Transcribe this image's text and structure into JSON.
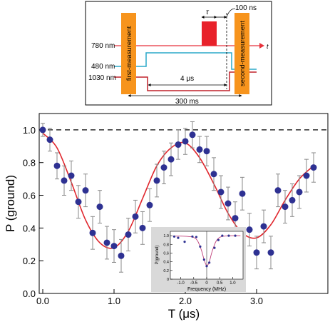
{
  "colors": {
    "laser780": "#e8323c",
    "laser480": "#2aa8c8",
    "laser1030": "#c0202a",
    "measure": "#f7941d",
    "pulse": "#e8212a",
    "point": "#2e3192",
    "fit": "#e0262d",
    "inset_bg": "#d9d9d9"
  },
  "sequence": {
    "label_780": "780 nm",
    "label_480": "480 nm",
    "label_1030": "1030 nm",
    "first_measurement": "first-measurement",
    "second_measurement": "second-measurement",
    "tau": "τ",
    "delay": "100 ns",
    "duration_short": "4 μs",
    "duration_long": "300 ms",
    "time_axis": "t"
  },
  "chart_data": [
    {
      "type": "scatter",
      "xlabel": "T (μs)",
      "ylabel": "P (ground)",
      "xlim": [
        -0.05,
        4.0
      ],
      "ylim": [
        0.0,
        1.1
      ],
      "xticks": [
        "0.0",
        "1.0",
        "2.0",
        "3.0"
      ],
      "xtick_values": [
        0,
        1,
        2,
        3
      ],
      "yticks": [
        "0.0",
        "0.2",
        "0.4",
        "0.6",
        "0.8",
        "1.0"
      ],
      "ytick_values": [
        0,
        0.2,
        0.4,
        0.6,
        0.8,
        1.0
      ],
      "reference_line": 1.0,
      "series": [
        {
          "points": [
            {
              "x": 0.0,
              "y": 1.0,
              "err": 0.04
            },
            {
              "x": 0.1,
              "y": 0.94,
              "err": 0.07
            },
            {
              "x": 0.2,
              "y": 0.78,
              "err": 0.08
            },
            {
              "x": 0.3,
              "y": 0.69,
              "err": 0.09
            },
            {
              "x": 0.4,
              "y": 0.72,
              "err": 0.09
            },
            {
              "x": 0.5,
              "y": 0.56,
              "err": 0.1
            },
            {
              "x": 0.6,
              "y": 0.63,
              "err": 0.1
            },
            {
              "x": 0.7,
              "y": 0.37,
              "err": 0.1
            },
            {
              "x": 0.8,
              "y": 0.53,
              "err": 0.1
            },
            {
              "x": 0.9,
              "y": 0.31,
              "err": 0.1
            },
            {
              "x": 1.0,
              "y": 0.29,
              "err": 0.1
            },
            {
              "x": 1.1,
              "y": 0.23,
              "err": 0.1
            },
            {
              "x": 1.2,
              "y": 0.36,
              "err": 0.1
            },
            {
              "x": 1.3,
              "y": 0.47,
              "err": 0.1
            },
            {
              "x": 1.4,
              "y": 0.4,
              "err": 0.1
            },
            {
              "x": 1.5,
              "y": 0.54,
              "err": 0.1
            },
            {
              "x": 1.6,
              "y": 0.69,
              "err": 0.1
            },
            {
              "x": 1.7,
              "y": 0.77,
              "err": 0.1
            },
            {
              "x": 1.8,
              "y": 0.82,
              "err": 0.1
            },
            {
              "x": 1.9,
              "y": 0.91,
              "err": 0.09
            },
            {
              "x": 2.0,
              "y": 0.93,
              "err": 0.08
            },
            {
              "x": 2.1,
              "y": 0.97,
              "err": 0.08
            },
            {
              "x": 2.2,
              "y": 0.88,
              "err": 0.08
            },
            {
              "x": 2.3,
              "y": 0.87,
              "err": 0.09
            },
            {
              "x": 2.4,
              "y": 0.73,
              "err": 0.1
            },
            {
              "x": 2.5,
              "y": 0.62,
              "err": 0.1
            },
            {
              "x": 2.6,
              "y": 0.55,
              "err": 0.1
            },
            {
              "x": 2.7,
              "y": 0.46,
              "err": 0.1
            },
            {
              "x": 2.8,
              "y": 0.61,
              "err": 0.1
            },
            {
              "x": 2.9,
              "y": 0.39,
              "err": 0.1
            },
            {
              "x": 3.0,
              "y": 0.25,
              "err": 0.1
            },
            {
              "x": 3.1,
              "y": 0.41,
              "err": 0.1
            },
            {
              "x": 3.2,
              "y": 0.25,
              "err": 0.1
            },
            {
              "x": 3.3,
              "y": 0.63,
              "err": 0.1
            },
            {
              "x": 3.4,
              "y": 0.53,
              "err": 0.1
            },
            {
              "x": 3.5,
              "y": 0.57,
              "err": 0.1
            },
            {
              "x": 3.6,
              "y": 0.62,
              "err": 0.1
            },
            {
              "x": 3.7,
              "y": 0.72,
              "err": 0.1
            },
            {
              "x": 3.8,
              "y": 0.77,
              "err": 0.09
            }
          ],
          "fit": {
            "x": [
              0.0,
              0.2,
              0.4,
              0.6,
              0.8,
              1.0,
              1.2,
              1.4,
              1.6,
              1.8,
              2.0,
              2.2,
              2.4,
              2.6,
              2.8,
              3.0,
              3.2,
              3.4,
              3.6,
              3.8
            ],
            "y": [
              0.98,
              0.89,
              0.68,
              0.45,
              0.31,
              0.28,
              0.38,
              0.58,
              0.78,
              0.89,
              0.92,
              0.83,
              0.67,
              0.49,
              0.37,
              0.34,
              0.42,
              0.57,
              0.7,
              0.78
            ]
          }
        }
      ]
    },
    {
      "type": "scatter",
      "xlabel": "Frequency (MHz)",
      "ylabel": "P(ground)",
      "xlim": [
        -1.4,
        1.4
      ],
      "ylim": [
        0.0,
        1.1
      ],
      "xticks": [
        "-1.0",
        "-0.5",
        "0",
        "0.5",
        "1.0"
      ],
      "xtick_values": [
        -1.0,
        -0.5,
        0.0,
        0.5,
        1.0
      ],
      "yticks": [
        "0",
        "0.2",
        "0.4",
        "0.6",
        "0.8",
        "1.0"
      ],
      "ytick_values": [
        0,
        0.2,
        0.4,
        0.6,
        0.8,
        1.0
      ],
      "series": [
        {
          "points": [
            {
              "x": -1.25,
              "y": 0.98
            },
            {
              "x": -1.1,
              "y": 0.95
            },
            {
              "x": -0.85,
              "y": 0.86
            },
            {
              "x": -0.55,
              "y": 0.98
            },
            {
              "x": -0.4,
              "y": 0.97
            },
            {
              "x": -0.25,
              "y": 0.75
            },
            {
              "x": -0.1,
              "y": 0.45
            },
            {
              "x": 0.0,
              "y": 0.3
            },
            {
              "x": 0.1,
              "y": 0.38
            },
            {
              "x": 0.3,
              "y": 0.72
            },
            {
              "x": 0.45,
              "y": 0.9
            },
            {
              "x": 0.6,
              "y": 1.0
            },
            {
              "x": 0.85,
              "y": 1.0
            },
            {
              "x": 1.1,
              "y": 1.0
            }
          ],
          "fit": {
            "x": [
              -1.3,
              -1.0,
              -0.7,
              -0.5,
              -0.35,
              -0.2,
              -0.1,
              0.0,
              0.1,
              0.2,
              0.35,
              0.5,
              0.7,
              1.0,
              1.3
            ],
            "y": [
              0.99,
              0.99,
              0.98,
              0.96,
              0.88,
              0.66,
              0.45,
              0.31,
              0.4,
              0.62,
              0.86,
              0.96,
              0.99,
              1.0,
              1.0
            ]
          }
        }
      ]
    }
  ]
}
